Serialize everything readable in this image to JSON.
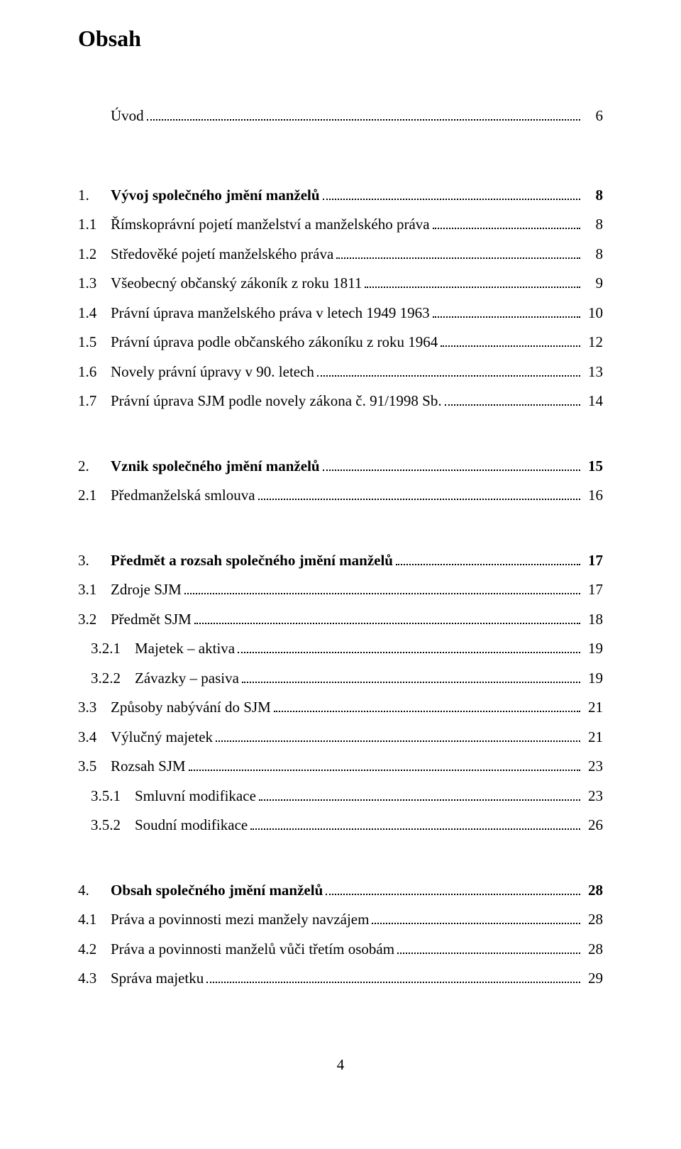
{
  "title": "Obsah",
  "page_number": "4",
  "toc": [
    {
      "num": "",
      "label": "Úvod",
      "page": "6",
      "indent": 0,
      "bold": false,
      "gap_after": "large"
    },
    {
      "num": "1.",
      "label": "Vývoj společného jmění manželů",
      "page": "8",
      "indent": 0,
      "bold": true
    },
    {
      "num": "1.1",
      "label": "Římskoprávní pojetí manželství a manželského práva",
      "page": "8",
      "indent": 1
    },
    {
      "num": "1.2",
      "label": "Středověké pojetí manželského práva",
      "page": "8",
      "indent": 1
    },
    {
      "num": "1.3",
      "label": "Všeobecný občanský zákoník z roku 1811",
      "page": "9",
      "indent": 1
    },
    {
      "num": "1.4",
      "label": "Právní úprava manželského práva v letech 1949 1963",
      "page": "10",
      "indent": 1
    },
    {
      "num": "1.5",
      "label": "Právní úprava podle občanského zákoníku z roku 1964",
      "page": "12",
      "indent": 1
    },
    {
      "num": "1.6",
      "label": "Novely právní úpravy v 90. letech",
      "page": "13",
      "indent": 1
    },
    {
      "num": "1.7",
      "label": "Právní úprava SJM podle novely zákona č. 91/1998 Sb.",
      "page": "14",
      "indent": 1,
      "gap_after": "med"
    },
    {
      "num": "2.",
      "label": "Vznik společného jmění manželů",
      "page": "15",
      "indent": 0,
      "bold": true
    },
    {
      "num": "2.1",
      "label": "Předmanželská smlouva",
      "page": "16",
      "indent": 1,
      "gap_after": "med"
    },
    {
      "num": "3.",
      "label": "Předmět a rozsah společného jmění manželů",
      "page": "17",
      "indent": 0,
      "bold": true
    },
    {
      "num": "3.1",
      "label": "Zdroje SJM",
      "page": "17",
      "indent": 1
    },
    {
      "num": "3.2",
      "label": "Předmět SJM",
      "page": "18",
      "indent": 1
    },
    {
      "num": "3.2.1",
      "label": "Majetek – aktiva",
      "page": "19",
      "indent": 2
    },
    {
      "num": "3.2.2",
      "label": "Závazky – pasiva",
      "page": "19",
      "indent": 2
    },
    {
      "num": "3.3",
      "label": "Způsoby nabývání do SJM",
      "page": "21",
      "indent": 1
    },
    {
      "num": "3.4",
      "label": "Výlučný majetek",
      "page": "21",
      "indent": 1
    },
    {
      "num": "3.5",
      "label": "Rozsah SJM",
      "page": "23",
      "indent": 1
    },
    {
      "num": "3.5.1",
      "label": "Smluvní modifikace",
      "page": "23",
      "indent": 2
    },
    {
      "num": "3.5.2",
      "label": "Soudní modifikace",
      "page": "26",
      "indent": 2,
      "gap_after": "med"
    },
    {
      "num": "4.",
      "label": "Obsah společného jmění manželů",
      "page": "28",
      "indent": 0,
      "bold": true
    },
    {
      "num": "4.1",
      "label": "Práva a povinnosti mezi manžely navzájem",
      "page": "28",
      "indent": 1
    },
    {
      "num": "4.2",
      "label": "Práva a povinnosti manželů vůči třetím osobám",
      "page": "28",
      "indent": 1
    },
    {
      "num": "4.3",
      "label": "Správa majetku",
      "page": "29",
      "indent": 1
    }
  ]
}
